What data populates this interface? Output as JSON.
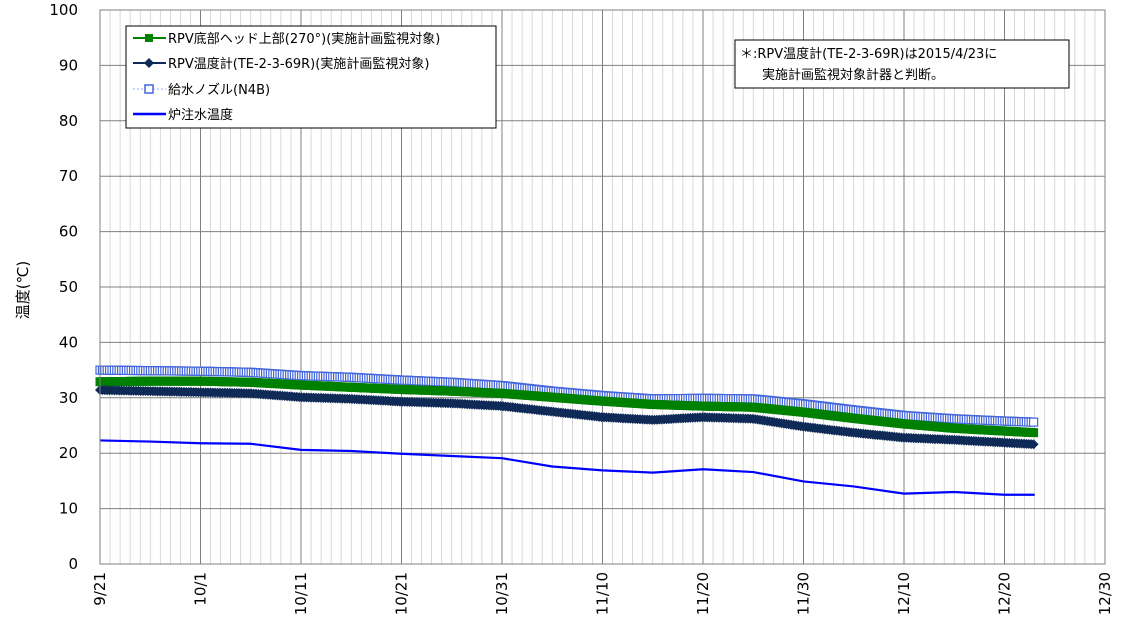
{
  "chart_data": {
    "type": "line",
    "title": "",
    "xlabel": "",
    "ylabel": "温度(℃)",
    "ylim": [
      0,
      100
    ],
    "yticks": [
      0,
      10,
      20,
      30,
      40,
      50,
      60,
      70,
      80,
      90,
      100
    ],
    "xlim": [
      "9/21",
      "12/30"
    ],
    "xtick_labels": [
      "9/21",
      "10/1",
      "10/11",
      "10/21",
      "10/31",
      "11/10",
      "11/20",
      "11/30",
      "12/10",
      "12/20",
      "12/30"
    ],
    "grid": "major and minor (daily)",
    "legend_position": "top-left",
    "x_dates": [
      "9/21",
      "9/26",
      "10/1",
      "10/6",
      "10/11",
      "10/16",
      "10/21",
      "10/26",
      "10/31",
      "11/5",
      "11/10",
      "11/15",
      "11/20",
      "11/25",
      "11/30",
      "12/5",
      "12/10",
      "12/15",
      "12/20",
      "12/23"
    ],
    "series": [
      {
        "name": "RPV底部ヘッド上部(270°)(実施計画監視対象)",
        "color": "#008000",
        "marker": "square",
        "values": [
          32.9,
          33.0,
          33.0,
          32.8,
          32.3,
          31.9,
          31.5,
          31.2,
          30.8,
          30.1,
          29.4,
          28.8,
          28.5,
          28.3,
          27.4,
          26.3,
          25.3,
          24.5,
          24.0,
          23.7
        ]
      },
      {
        "name": "RPV温度計(TE-2-3-69R)(実施計画監視対象)",
        "color": "#0f2a57",
        "marker": "diamond",
        "values": [
          31.4,
          31.2,
          31.0,
          30.8,
          30.1,
          29.8,
          29.3,
          29.0,
          28.5,
          27.5,
          26.5,
          26.0,
          26.5,
          26.2,
          24.8,
          23.7,
          22.8,
          22.4,
          21.9,
          21.6
        ]
      },
      {
        "name": "給水ノズル(N4B)",
        "color": "#4466dd",
        "marker": "open-square",
        "values": [
          35.0,
          34.9,
          34.8,
          34.6,
          34.0,
          33.7,
          33.2,
          32.8,
          32.2,
          31.2,
          30.4,
          29.8,
          29.9,
          29.8,
          28.9,
          27.8,
          26.8,
          26.2,
          25.8,
          25.6
        ]
      },
      {
        "name": "炉注水温度",
        "color": "#0000ff",
        "marker": "none",
        "values": [
          22.3,
          22.1,
          21.8,
          21.7,
          20.6,
          20.4,
          19.9,
          19.5,
          19.1,
          17.6,
          16.9,
          16.5,
          17.1,
          16.6,
          14.9,
          14.0,
          12.7,
          13.0,
          12.5,
          12.5
        ]
      }
    ],
    "annotations": [
      {
        "lines": [
          "＊:RPV温度計(TE-2-3-69R)は2015/4/23に",
          "実施計画監視対象計器と判断。"
        ]
      }
    ]
  }
}
